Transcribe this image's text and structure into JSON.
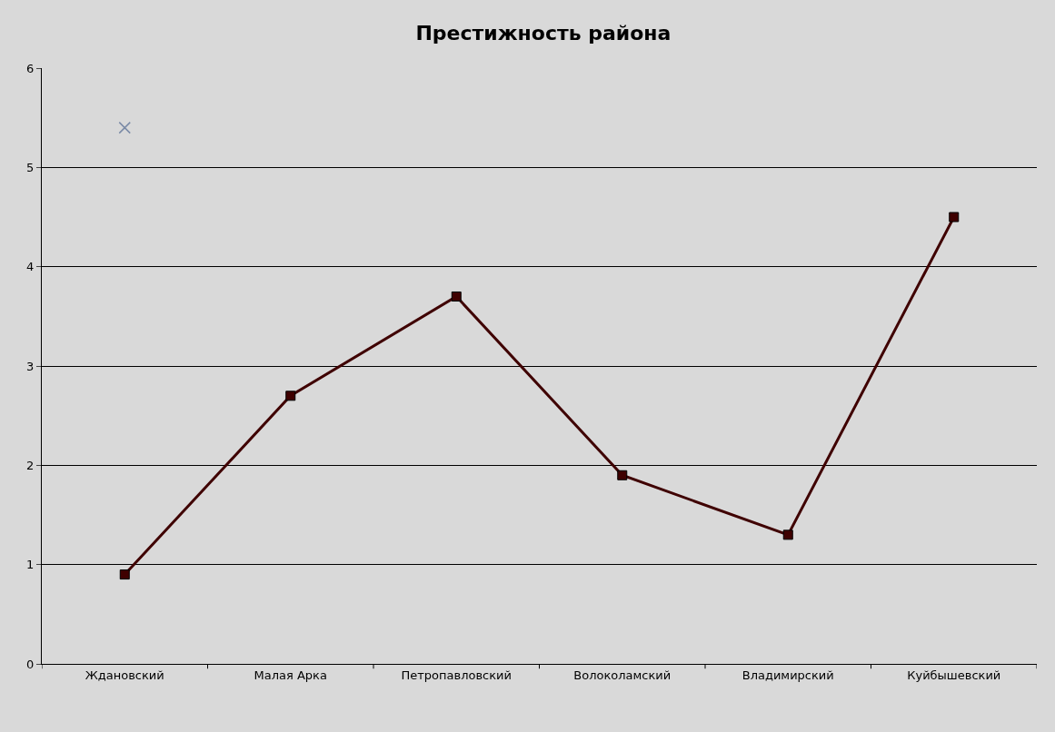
{
  "chart_data": {
    "type": "line",
    "title": "Престижность района",
    "categories": [
      "Ждановский",
      "Малая Арка",
      "Петропавловский",
      "Волоколамский",
      "Владимирский",
      "Куйбышевский"
    ],
    "series": [
      {
        "color": "#3f0000",
        "marker": "square",
        "values": [
          0.9,
          2.7,
          3.7,
          1.9,
          1.3,
          4.5
        ]
      },
      {
        "type": "scatter",
        "color": "#7a8aa6",
        "marker": "cross",
        "values": [
          5.4,
          null,
          null,
          null,
          null,
          null
        ]
      }
    ],
    "ylim": [
      0,
      6
    ],
    "yticks": [
      0,
      1,
      2,
      3,
      4,
      5,
      6
    ],
    "grid": "y",
    "legend": false
  }
}
